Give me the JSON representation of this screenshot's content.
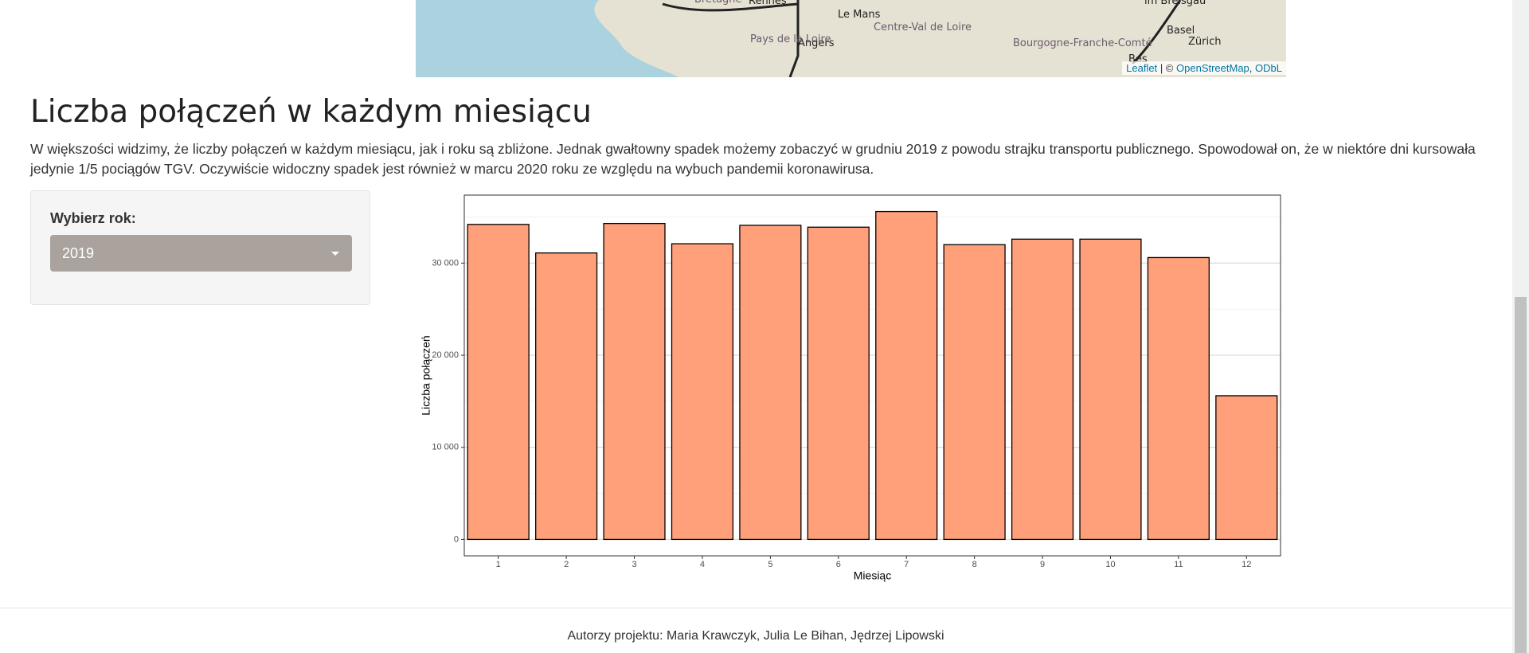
{
  "map": {
    "labels": [
      "Bretagne",
      "Rennes",
      "Le Mans",
      "Angers",
      "Pays de la Loire",
      "Centre-Val de Loire",
      "Bourgogne-Franche-Comté",
      "im Breisgau",
      "Basel",
      "Zürich",
      "Bes"
    ],
    "attribution": {
      "leaflet": "Leaflet",
      "separator": "| ©",
      "osm": "OpenStreetMap",
      "odbl": "ODbL"
    }
  },
  "section": {
    "title": "Liczba połączeń w każdym miesiącu",
    "description": "W większości widzimy, że liczby połączeń w każdym miesiącu, jak i roku są zbliżone. Jednak gwałtowny spadek możemy zobaczyć w grudniu 2019 z powodu strajku transportu publicznego. Spowodował on, że w niektóre dni kursowała jedynie 1/5 pociągów TGV. Oczywiście widoczny spadek jest również w marcu 2020 roku ze względu na wybuch pandemii koronawirusa."
  },
  "controls": {
    "label": "Wybierz rok:",
    "selected": "2019"
  },
  "chart_data": {
    "type": "bar",
    "x_label": "Miesiąc",
    "y_label": "Liczba połączeń",
    "categories": [
      "1",
      "2",
      "3",
      "4",
      "5",
      "6",
      "7",
      "8",
      "9",
      "10",
      "11",
      "12"
    ],
    "values": [
      34200,
      31100,
      34300,
      32100,
      34100,
      33900,
      35600,
      32000,
      32600,
      32600,
      30600,
      15600
    ],
    "color": "#ffa07a",
    "ylim": [
      -1780,
      37380
    ],
    "yticks": [
      0,
      {
        "value": 10000,
        "label": "10 000"
      },
      {
        "value": 20000,
        "label": "20 000"
      },
      {
        "value": 30000,
        "label": "30 000"
      }
    ],
    "minor_yticks": [
      5000,
      15000,
      25000,
      35000
    ],
    "grid": true
  },
  "footer": "Autorzy projektu: Maria Krawczyk, Julia Le Bihan, Jędrzej Lipowski"
}
